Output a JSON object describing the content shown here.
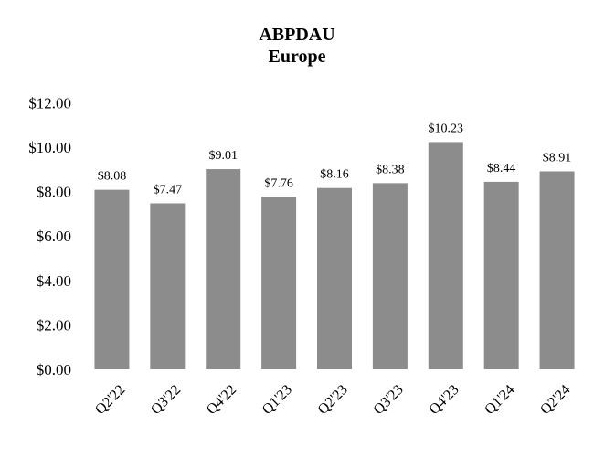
{
  "chart_data": {
    "type": "bar",
    "title": "ABPDAU",
    "subtitle": "Europe",
    "categories": [
      "Q2'22",
      "Q3'22",
      "Q4'22",
      "Q1'23",
      "Q2'23",
      "Q3'23",
      "Q4'23",
      "Q1'24",
      "Q2'24"
    ],
    "values": [
      8.08,
      7.47,
      9.01,
      7.76,
      8.16,
      8.38,
      10.23,
      8.44,
      8.91
    ],
    "value_labels": [
      "$8.08",
      "$7.47",
      "$9.01",
      "$7.76",
      "$8.16",
      "$8.38",
      "$10.23",
      "$8.44",
      "$8.91"
    ],
    "ylim": [
      0,
      12
    ],
    "yticks": [
      0,
      2,
      4,
      6,
      8,
      10,
      12
    ],
    "ytick_labels": [
      "$0.00",
      "$2.00",
      "$4.00",
      "$6.00",
      "$8.00",
      "$10.00",
      "$12.00"
    ],
    "xlabel": "",
    "ylabel": "",
    "grid": false,
    "legend": "none",
    "bar_color": "#8c8c8c"
  }
}
